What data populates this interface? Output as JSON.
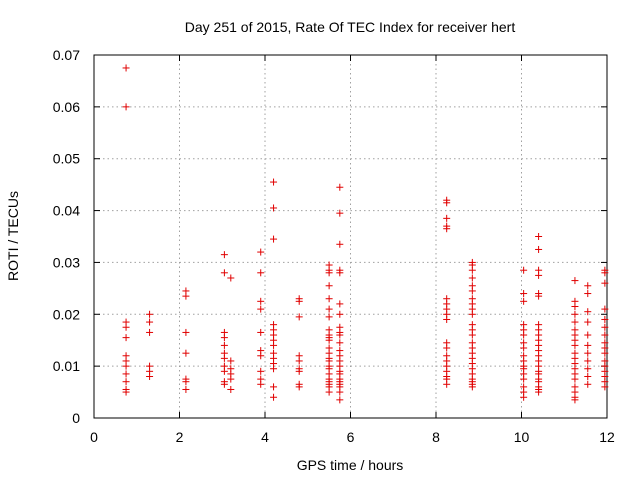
{
  "chart_data": {
    "type": "scatter",
    "title": "Day 251 of 2015, Rate Of TEC Index for receiver hert",
    "xlabel": "GPS time / hours",
    "ylabel": "ROTI / TECUs",
    "xlim": [
      0,
      12
    ],
    "ylim": [
      0,
      0.07
    ],
    "xticks": [
      0,
      2,
      4,
      6,
      8,
      10,
      12
    ],
    "yticks": [
      0,
      0.01,
      0.02,
      0.03,
      0.04,
      0.05,
      0.06,
      0.07
    ],
    "xtick_labels": [
      "0",
      "2",
      "4",
      "6",
      "8",
      "10",
      "12"
    ],
    "ytick_labels": [
      "0",
      "0.01",
      "0.02",
      "0.03",
      "0.04",
      "0.05",
      "0.06",
      "0.07"
    ],
    "grid": true,
    "marker": "+",
    "color": "#e00000",
    "series": [
      {
        "points": [
          [
            0.75,
            0.0675
          ],
          [
            0.75,
            0.06
          ],
          [
            0.75,
            0.0185
          ],
          [
            0.75,
            0.0175
          ],
          [
            0.75,
            0.0155
          ],
          [
            0.75,
            0.012
          ],
          [
            0.75,
            0.011
          ],
          [
            0.75,
            0.01
          ],
          [
            0.75,
            0.0085
          ],
          [
            0.75,
            0.007
          ],
          [
            0.75,
            0.0055
          ],
          [
            0.75,
            0.005
          ],
          [
            1.3,
            0.02
          ],
          [
            1.3,
            0.0185
          ],
          [
            1.3,
            0.0165
          ],
          [
            1.3,
            0.01
          ],
          [
            1.3,
            0.009
          ],
          [
            1.3,
            0.008
          ],
          [
            2.15,
            0.0245
          ],
          [
            2.15,
            0.0235
          ],
          [
            2.15,
            0.0165
          ],
          [
            2.15,
            0.0125
          ],
          [
            2.15,
            0.0075
          ],
          [
            2.15,
            0.007
          ],
          [
            2.15,
            0.0055
          ],
          [
            3.05,
            0.0315
          ],
          [
            3.05,
            0.028
          ],
          [
            3.05,
            0.0165
          ],
          [
            3.05,
            0.0155
          ],
          [
            3.05,
            0.014
          ],
          [
            3.05,
            0.0125
          ],
          [
            3.05,
            0.0115
          ],
          [
            3.05,
            0.01
          ],
          [
            3.05,
            0.009
          ],
          [
            3.05,
            0.007
          ],
          [
            3.05,
            0.0065
          ],
          [
            3.2,
            0.027
          ],
          [
            3.2,
            0.011
          ],
          [
            3.2,
            0.0095
          ],
          [
            3.2,
            0.0085
          ],
          [
            3.2,
            0.0075
          ],
          [
            3.2,
            0.0055
          ],
          [
            3.9,
            0.032
          ],
          [
            3.9,
            0.028
          ],
          [
            3.9,
            0.0225
          ],
          [
            3.9,
            0.021
          ],
          [
            3.9,
            0.0165
          ],
          [
            3.9,
            0.013
          ],
          [
            3.9,
            0.012
          ],
          [
            3.9,
            0.009
          ],
          [
            3.9,
            0.0075
          ],
          [
            3.9,
            0.0065
          ],
          [
            4.2,
            0.0455
          ],
          [
            4.2,
            0.0405
          ],
          [
            4.2,
            0.0345
          ],
          [
            4.2,
            0.018
          ],
          [
            4.2,
            0.017
          ],
          [
            4.2,
            0.016
          ],
          [
            4.2,
            0.015
          ],
          [
            4.2,
            0.014
          ],
          [
            4.2,
            0.0125
          ],
          [
            4.2,
            0.0115
          ],
          [
            4.2,
            0.0105
          ],
          [
            4.2,
            0.0095
          ],
          [
            4.2,
            0.006
          ],
          [
            4.2,
            0.004
          ],
          [
            4.8,
            0.023
          ],
          [
            4.8,
            0.0225
          ],
          [
            4.8,
            0.0195
          ],
          [
            4.8,
            0.012
          ],
          [
            4.8,
            0.011
          ],
          [
            4.8,
            0.0095
          ],
          [
            4.8,
            0.009
          ],
          [
            4.8,
            0.0065
          ],
          [
            4.8,
            0.006
          ],
          [
            5.5,
            0.0295
          ],
          [
            5.5,
            0.0285
          ],
          [
            5.5,
            0.028
          ],
          [
            5.5,
            0.0255
          ],
          [
            5.5,
            0.023
          ],
          [
            5.5,
            0.021
          ],
          [
            5.5,
            0.0195
          ],
          [
            5.5,
            0.017
          ],
          [
            5.5,
            0.016
          ],
          [
            5.5,
            0.0155
          ],
          [
            5.5,
            0.015
          ],
          [
            5.5,
            0.0135
          ],
          [
            5.5,
            0.0125
          ],
          [
            5.5,
            0.0115
          ],
          [
            5.5,
            0.011
          ],
          [
            5.5,
            0.01
          ],
          [
            5.5,
            0.0095
          ],
          [
            5.5,
            0.0085
          ],
          [
            5.5,
            0.0075
          ],
          [
            5.5,
            0.007
          ],
          [
            5.5,
            0.0065
          ],
          [
            5.5,
            0.006
          ],
          [
            5.5,
            0.005
          ],
          [
            5.75,
            0.0445
          ],
          [
            5.75,
            0.0395
          ],
          [
            5.75,
            0.0335
          ],
          [
            5.75,
            0.0285
          ],
          [
            5.75,
            0.028
          ],
          [
            5.75,
            0.022
          ],
          [
            5.75,
            0.02
          ],
          [
            5.75,
            0.0175
          ],
          [
            5.75,
            0.0165
          ],
          [
            5.75,
            0.016
          ],
          [
            5.75,
            0.0145
          ],
          [
            5.75,
            0.013
          ],
          [
            5.75,
            0.012
          ],
          [
            5.75,
            0.011
          ],
          [
            5.75,
            0.01
          ],
          [
            5.75,
            0.009
          ],
          [
            5.75,
            0.0085
          ],
          [
            5.75,
            0.0075
          ],
          [
            5.75,
            0.007
          ],
          [
            5.75,
            0.0065
          ],
          [
            5.75,
            0.006
          ],
          [
            5.75,
            0.005
          ],
          [
            5.75,
            0.0035
          ],
          [
            8.25,
            0.042
          ],
          [
            8.25,
            0.0415
          ],
          [
            8.25,
            0.0385
          ],
          [
            8.25,
            0.037
          ],
          [
            8.25,
            0.0365
          ],
          [
            8.25,
            0.023
          ],
          [
            8.25,
            0.022
          ],
          [
            8.25,
            0.021
          ],
          [
            8.25,
            0.02
          ],
          [
            8.25,
            0.019
          ],
          [
            8.25,
            0.0145
          ],
          [
            8.25,
            0.0135
          ],
          [
            8.25,
            0.012
          ],
          [
            8.25,
            0.011
          ],
          [
            8.25,
            0.01
          ],
          [
            8.25,
            0.009
          ],
          [
            8.25,
            0.008
          ],
          [
            8.25,
            0.0075
          ],
          [
            8.25,
            0.0065
          ],
          [
            8.85,
            0.03
          ],
          [
            8.85,
            0.0295
          ],
          [
            8.85,
            0.0285
          ],
          [
            8.85,
            0.027
          ],
          [
            8.85,
            0.0255
          ],
          [
            8.85,
            0.0245
          ],
          [
            8.85,
            0.023
          ],
          [
            8.85,
            0.022
          ],
          [
            8.85,
            0.021
          ],
          [
            8.85,
            0.02
          ],
          [
            8.85,
            0.018
          ],
          [
            8.85,
            0.017
          ],
          [
            8.85,
            0.016
          ],
          [
            8.85,
            0.0145
          ],
          [
            8.85,
            0.0135
          ],
          [
            8.85,
            0.0125
          ],
          [
            8.85,
            0.0115
          ],
          [
            8.85,
            0.0105
          ],
          [
            8.85,
            0.0095
          ],
          [
            8.85,
            0.0085
          ],
          [
            8.85,
            0.0075
          ],
          [
            8.85,
            0.007
          ],
          [
            8.85,
            0.0065
          ],
          [
            8.85,
            0.006
          ],
          [
            10.05,
            0.0285
          ],
          [
            10.05,
            0.024
          ],
          [
            10.05,
            0.0225
          ],
          [
            10.05,
            0.018
          ],
          [
            10.05,
            0.017
          ],
          [
            10.05,
            0.016
          ],
          [
            10.05,
            0.0145
          ],
          [
            10.05,
            0.0135
          ],
          [
            10.05,
            0.012
          ],
          [
            10.05,
            0.011
          ],
          [
            10.05,
            0.01
          ],
          [
            10.05,
            0.0095
          ],
          [
            10.05,
            0.0085
          ],
          [
            10.05,
            0.0075
          ],
          [
            10.05,
            0.006
          ],
          [
            10.05,
            0.005
          ],
          [
            10.05,
            0.004
          ],
          [
            10.4,
            0.035
          ],
          [
            10.4,
            0.0325
          ],
          [
            10.4,
            0.0285
          ],
          [
            10.4,
            0.0275
          ],
          [
            10.4,
            0.024
          ],
          [
            10.4,
            0.0235
          ],
          [
            10.4,
            0.018
          ],
          [
            10.4,
            0.017
          ],
          [
            10.4,
            0.016
          ],
          [
            10.4,
            0.015
          ],
          [
            10.4,
            0.014
          ],
          [
            10.4,
            0.013
          ],
          [
            10.4,
            0.012
          ],
          [
            10.4,
            0.011
          ],
          [
            10.4,
            0.01
          ],
          [
            10.4,
            0.009
          ],
          [
            10.4,
            0.0085
          ],
          [
            10.4,
            0.0075
          ],
          [
            10.4,
            0.007
          ],
          [
            10.4,
            0.006
          ],
          [
            10.4,
            0.0055
          ],
          [
            10.4,
            0.005
          ],
          [
            11.25,
            0.0265
          ],
          [
            11.25,
            0.0225
          ],
          [
            11.25,
            0.0215
          ],
          [
            11.25,
            0.02
          ],
          [
            11.25,
            0.0185
          ],
          [
            11.25,
            0.017
          ],
          [
            11.25,
            0.016
          ],
          [
            11.25,
            0.015
          ],
          [
            11.25,
            0.014
          ],
          [
            11.25,
            0.0125
          ],
          [
            11.25,
            0.0115
          ],
          [
            11.25,
            0.0105
          ],
          [
            11.25,
            0.0095
          ],
          [
            11.25,
            0.0085
          ],
          [
            11.25,
            0.0075
          ],
          [
            11.25,
            0.006
          ],
          [
            11.25,
            0.005
          ],
          [
            11.25,
            0.004
          ],
          [
            11.25,
            0.0035
          ],
          [
            11.55,
            0.0255
          ],
          [
            11.55,
            0.024
          ],
          [
            11.55,
            0.0205
          ],
          [
            11.55,
            0.0185
          ],
          [
            11.55,
            0.016
          ],
          [
            11.55,
            0.014
          ],
          [
            11.55,
            0.0125
          ],
          [
            11.55,
            0.011
          ],
          [
            11.55,
            0.0095
          ],
          [
            11.55,
            0.008
          ],
          [
            11.55,
            0.0065
          ],
          [
            11.95,
            0.0285
          ],
          [
            11.95,
            0.028
          ],
          [
            11.95,
            0.026
          ],
          [
            11.95,
            0.021
          ],
          [
            11.95,
            0.019
          ],
          [
            11.95,
            0.0175
          ],
          [
            11.95,
            0.016
          ],
          [
            11.95,
            0.0145
          ],
          [
            11.95,
            0.0135
          ],
          [
            11.95,
            0.0125
          ],
          [
            11.95,
            0.011
          ],
          [
            11.95,
            0.01
          ],
          [
            11.95,
            0.009
          ],
          [
            11.95,
            0.008
          ],
          [
            11.95,
            0.007
          ],
          [
            11.95,
            0.006
          ]
        ]
      }
    ]
  }
}
